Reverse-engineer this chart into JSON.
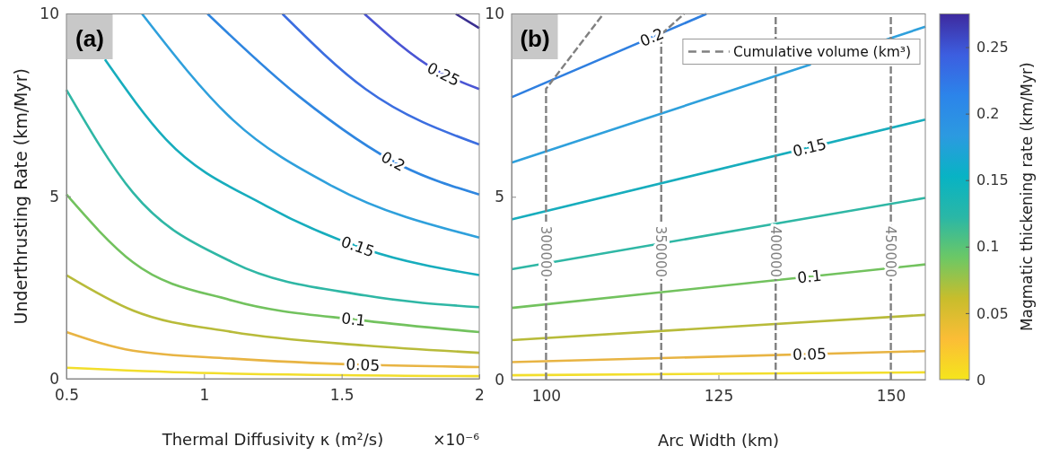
{
  "chart_data": [
    {
      "type": "line",
      "title": "(a)",
      "xlabel": "Thermal Diffusivity κ (m²/s)",
      "ylabel": "Underthrusting Rate (km/Myr)",
      "annotations": [
        "×10⁻⁶"
      ],
      "xlim": [
        0.5,
        2
      ],
      "xticks": [
        0.5,
        1,
        1.5,
        2
      ],
      "ylim": [
        0,
        10
      ],
      "yticks": [
        0,
        5,
        10
      ],
      "grid": false,
      "legend": false,
      "marker": "none",
      "series": [
        {
          "color": "#f2de2c",
          "x": [
            0.5,
            0.98,
            2
          ],
          "values": [
            0.3,
            0.16,
            0.07
          ]
        },
        {
          "name": "0.05",
          "color": "#e8b443",
          "x": [
            0.5,
            0.742,
            1.104,
            1.587,
            2
          ],
          "values": [
            1.28,
            0.77,
            0.55,
            0.38,
            0.32
          ]
        },
        {
          "color": "#b8bb3a",
          "x": [
            0.5,
            0.742,
            1.104,
            1.587,
            2
          ],
          "values": [
            2.84,
            1.87,
            1.28,
            0.91,
            0.71
          ]
        },
        {
          "name": "0.1",
          "color": "#72c25e",
          "x": [
            0.5,
            0.742,
            1.104,
            1.587,
            2
          ],
          "values": [
            5.05,
            3.19,
            2.14,
            1.59,
            1.28
          ]
        },
        {
          "color": "#2fb7a5",
          "x": [
            0.5,
            0.742,
            1.104,
            1.587,
            2
          ],
          "values": [
            7.92,
            5.1,
            3.19,
            2.28,
            1.96
          ]
        },
        {
          "name": "0.15",
          "color": "#17adbd",
          "x": [
            0.64,
            0.862,
            1.225,
            1.587,
            2
          ],
          "values": [
            8.75,
            6.56,
            4.74,
            3.55,
            2.84
          ]
        },
        {
          "color": "#2fa0dc",
          "x": [
            0.775,
            1.104,
            1.466,
            2
          ],
          "values": [
            10,
            7.1,
            5.28,
            3.87
          ]
        },
        {
          "name": "0.2",
          "color": "#2f86e0",
          "x": [
            1.013,
            1.345,
            1.72,
            2
          ],
          "values": [
            10,
            7.74,
            5.83,
            5.05
          ]
        },
        {
          "color": "#3c6ee0",
          "x": [
            1.285,
            1.587,
            2
          ],
          "values": [
            10,
            7.94,
            6.42
          ]
        },
        {
          "name": "0.25",
          "color": "#4a55d4",
          "x": [
            1.583,
            1.84,
            2
          ],
          "values": [
            10,
            8.47,
            7.94
          ]
        },
        {
          "color": "#3a2f90",
          "x": [
            1.915,
            2
          ],
          "values": [
            10,
            9.61
          ]
        }
      ]
    },
    {
      "type": "line",
      "title": "(b)",
      "xlabel": "Arc Width (km)",
      "annotations": [
        {
          "text": "300000",
          "x": 100,
          "y": 3.5
        },
        {
          "text": "350000",
          "x": 116.7,
          "y": 3.5
        },
        {
          "text": "400000",
          "x": 133.3,
          "y": 3.5
        },
        {
          "text": "450000",
          "x": 150,
          "y": 3.5
        }
      ],
      "clabel": "Magmatic thickening rate (km/Myr)",
      "legend_title": "Cumulative volume (km³)",
      "xlim": [
        95,
        155
      ],
      "xticks": [
        100,
        125,
        150
      ],
      "ylim": [
        0,
        10
      ],
      "yticks": [
        0,
        5,
        10
      ],
      "clim": [
        0,
        0.275
      ],
      "cticks": [
        0,
        0.05,
        0.1,
        0.15,
        0.2,
        0.25
      ],
      "grid": false,
      "legend": "top right",
      "marker": "none",
      "series": [
        {
          "color": "#f2de2c",
          "x": [
            95,
            155
          ],
          "values": [
            0.12,
            0.2
          ]
        },
        {
          "name": "0.05",
          "color": "#e8b443",
          "x": [
            95,
            155
          ],
          "values": [
            0.48,
            0.78
          ]
        },
        {
          "color": "#b8bb3a",
          "x": [
            95,
            155
          ],
          "values": [
            1.08,
            1.77
          ]
        },
        {
          "name": "0.1",
          "color": "#72c25e",
          "x": [
            95,
            155
          ],
          "values": [
            1.96,
            3.15
          ]
        },
        {
          "color": "#2fb7a5",
          "x": [
            95,
            155
          ],
          "values": [
            3.02,
            4.97
          ]
        },
        {
          "name": "0.15",
          "color": "#17adbd",
          "x": [
            95,
            155
          ],
          "values": [
            4.38,
            7.11
          ]
        },
        {
          "color": "#2fa0dc",
          "x": [
            95,
            138.4,
            null,
            149.2,
            155
          ],
          "values": [
            5.93,
            8.62,
            null,
            9.29,
            9.65
          ]
        },
        {
          "name": "0.2",
          "color": "#2f7fe0",
          "x": [
            95,
            123.25
          ],
          "values": [
            7.72,
            10
          ]
        },
        {
          "color": "#808080",
          "line_style": "dashed",
          "x": [
            100,
            100,
            108.3
          ],
          "values": [
            0,
            7.95,
            10
          ]
        },
        {
          "color": "#808080",
          "line_style": "dashed",
          "x": [
            116.7,
            116.7,
            120
          ],
          "values": [
            0,
            9.44,
            10
          ]
        }
      ],
      "ref_lines": [
        {
          "axis": "x",
          "value": 133.3,
          "color": "#808080",
          "line_style": "dashed"
        },
        {
          "axis": "x",
          "value": 150,
          "color": "#808080",
          "line_style": "dashed"
        }
      ]
    }
  ]
}
